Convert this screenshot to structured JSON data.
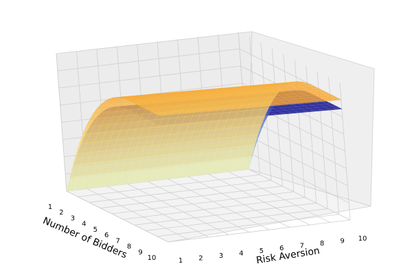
{
  "chart_data": {
    "type": "surface3d",
    "title": "",
    "axes": {
      "x": {
        "label": "Number of Bidders",
        "ticks": [
          "1",
          "2",
          "3",
          "4",
          "5",
          "6",
          "7",
          "8",
          "9",
          "10"
        ],
        "range": [
          1,
          10
        ]
      },
      "y": {
        "label": "Risk Aversion",
        "ticks": [
          "1",
          "2",
          "3",
          "4",
          "5",
          "6",
          "7",
          "8",
          "9",
          "10"
        ],
        "range": [
          1,
          10
        ]
      },
      "z": {
        "label": "",
        "ticks": [],
        "range": [
          0,
          1
        ]
      }
    },
    "grid": true,
    "legend": "none",
    "series": [
      {
        "colormap": "blue-to-lightblue",
        "colors": {
          "high": "#0a0a8c",
          "mid": "#5a6fd0",
          "low": "#a3dbe8"
        },
        "description_values": {
          "plateau": 0.85
        }
      },
      {
        "colormap": "orange-to-lightyellow",
        "colors": {
          "high": "#f6a432",
          "mid": "#f7d26a",
          "low": "#f6f4b8"
        },
        "description_values": {
          "plateau": 0.92
        }
      }
    ]
  }
}
